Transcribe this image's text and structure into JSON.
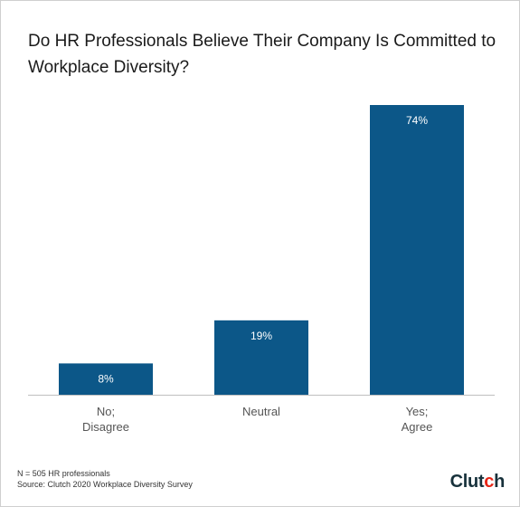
{
  "title": "Do HR Professionals Believe Their Company Is Committed to Workplace Diversity?",
  "footnote": {
    "sample": "N = 505 HR professionals",
    "source": "Source: Clutch 2020 Workplace Diversity Survey"
  },
  "logo": {
    "text_main": "Clut",
    "text_accent": "c",
    "text_end": "h"
  },
  "colors": {
    "bar": "#0c5788",
    "bar_label": "#ffffff",
    "axis": "#bfbfbf",
    "logo_dot": "#e62415"
  },
  "chart_data": {
    "type": "bar",
    "categories": [
      [
        "No;",
        "Disagree"
      ],
      [
        "Neutral"
      ],
      [
        "Yes;",
        "Agree"
      ]
    ],
    "values": [
      8,
      19,
      74
    ],
    "value_labels": [
      "8%",
      "19%",
      "74%"
    ],
    "ylim": [
      0,
      74
    ],
    "grid": false
  }
}
